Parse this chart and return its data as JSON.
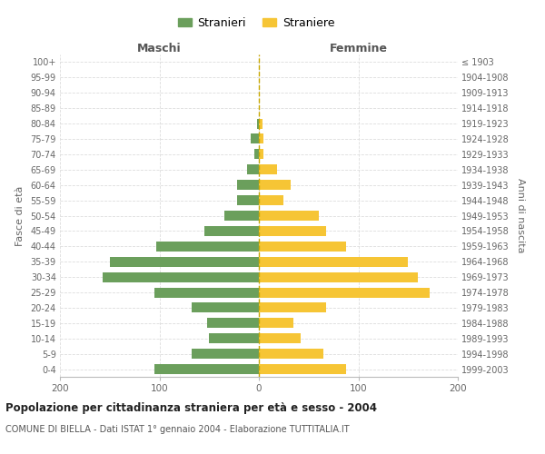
{
  "age_groups": [
    "100+",
    "95-99",
    "90-94",
    "85-89",
    "80-84",
    "75-79",
    "70-74",
    "65-69",
    "60-64",
    "55-59",
    "50-54",
    "45-49",
    "40-44",
    "35-39",
    "30-34",
    "25-29",
    "20-24",
    "15-19",
    "10-14",
    "5-9",
    "0-4"
  ],
  "birth_years": [
    "≤ 1903",
    "1904-1908",
    "1909-1913",
    "1914-1918",
    "1919-1923",
    "1924-1928",
    "1929-1933",
    "1934-1938",
    "1939-1943",
    "1944-1948",
    "1949-1953",
    "1954-1958",
    "1959-1963",
    "1964-1968",
    "1969-1973",
    "1974-1978",
    "1979-1983",
    "1984-1988",
    "1989-1993",
    "1994-1998",
    "1999-2003"
  ],
  "maschi": [
    0,
    0,
    0,
    0,
    2,
    8,
    5,
    12,
    22,
    22,
    35,
    55,
    103,
    150,
    157,
    105,
    68,
    52,
    50,
    68,
    105
  ],
  "femmine": [
    0,
    0,
    0,
    0,
    4,
    5,
    5,
    18,
    32,
    25,
    60,
    68,
    88,
    150,
    160,
    172,
    68,
    35,
    42,
    65,
    88
  ],
  "color_maschi": "#6b9f5c",
  "color_femmine": "#f6c535",
  "title": "Popolazione per cittadinanza straniera per età e sesso - 2004",
  "subtitle": "COMUNE DI BIELLA - Dati ISTAT 1° gennaio 2004 - Elaborazione TUTTITALIA.IT",
  "xlabel_left": "Maschi",
  "xlabel_right": "Femmine",
  "ylabel_left": "Fasce di età",
  "ylabel_right": "Anni di nascita",
  "legend_maschi": "Stranieri",
  "legend_femmine": "Straniere",
  "xlim": 200,
  "background_color": "#ffffff",
  "grid_color": "#cccccc"
}
